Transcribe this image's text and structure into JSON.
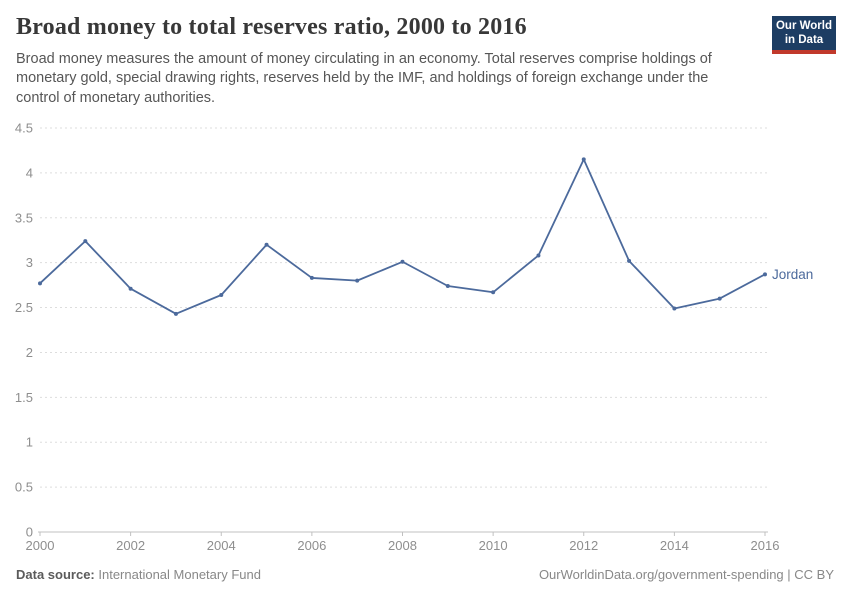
{
  "header": {
    "title": "Broad money to total reserves ratio, 2000 to 2016",
    "subtitle_lines": [
      "Broad money measures the amount of money circulating in an economy. Total reserves comprise holdings of",
      "monetary gold, special drawing rights, reserves held by the IMF, and holdings of foreign exchange under the",
      "control of monetary authorities."
    ],
    "logo": {
      "line1": "Our World",
      "line2": "in Data",
      "bg_color": "#1d3d63",
      "accent_color": "#c1392b"
    }
  },
  "chart_data": {
    "type": "line",
    "title": "Broad money to total reserves ratio, 2000 to 2016",
    "xlabel": "",
    "ylabel": "",
    "xlim": [
      2000,
      2016
    ],
    "ylim": [
      0,
      4.5
    ],
    "xticks": [
      2000,
      2002,
      2004,
      2006,
      2008,
      2010,
      2012,
      2014,
      2016
    ],
    "yticks": [
      0,
      0.5,
      1,
      1.5,
      2,
      2.5,
      3,
      3.5,
      4,
      4.5
    ],
    "grid": "horizontal-dashed",
    "legend_position": "end-of-line-label",
    "grid_color": "#dddddd",
    "axis_color": "#c0c0c0",
    "tick_label_color": "#8e8e8e",
    "series": [
      {
        "name": "Jordan",
        "color": "#4c6a9c",
        "x": [
          2000,
          2001,
          2002,
          2003,
          2004,
          2005,
          2006,
          2007,
          2008,
          2009,
          2010,
          2011,
          2012,
          2013,
          2014,
          2015,
          2016
        ],
        "values": [
          2.77,
          3.24,
          2.71,
          2.43,
          2.64,
          3.2,
          2.83,
          2.8,
          3.01,
          2.74,
          2.67,
          3.08,
          4.15,
          3.02,
          2.49,
          2.6,
          2.87
        ]
      }
    ]
  },
  "footer": {
    "datasource_label": "Data source:",
    "datasource_value": " International Monetary Fund",
    "credit": "OurWorldinData.org/government-spending | CC BY"
  }
}
